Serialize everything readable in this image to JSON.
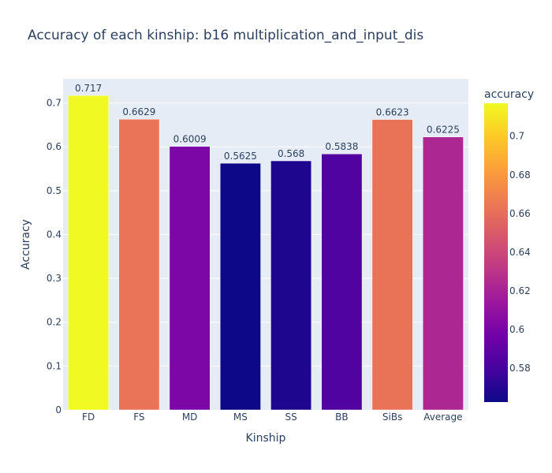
{
  "chart_data": {
    "type": "bar",
    "title": "Accuracy of each kinship: b16 multiplication_and_input_dis",
    "xlabel": "Kinship",
    "ylabel": "Accuracy",
    "categories": [
      "FD",
      "FS",
      "MD",
      "MS",
      "SS",
      "BB",
      "SiBs",
      "Average"
    ],
    "values": [
      0.717,
      0.6629,
      0.6009,
      0.5625,
      0.568,
      0.5838,
      0.6623,
      0.6225
    ],
    "value_labels": [
      "0.717",
      "0.6629",
      "0.6009",
      "0.5625",
      "0.568",
      "0.5838",
      "0.6623",
      "0.6225"
    ],
    "ylim": [
      0,
      0.755
    ],
    "yticks": [
      0,
      0.1,
      0.2,
      0.3,
      0.4,
      0.5,
      0.6,
      0.7
    ],
    "ytick_labels": [
      "0",
      "0.1",
      "0.2",
      "0.3",
      "0.4",
      "0.5",
      "0.6",
      "0.7"
    ],
    "grid": true,
    "colorbar": {
      "title": "accuracy",
      "range": [
        0.5625,
        0.717
      ],
      "ticks": [
        0.58,
        0.6,
        0.62,
        0.64,
        0.66,
        0.68,
        0.7
      ],
      "tick_labels": [
        "0.58",
        "0.6",
        "0.62",
        "0.64",
        "0.66",
        "0.68",
        "0.7"
      ],
      "colorscale": [
        "#0d0887",
        "#46039f",
        "#7201a8",
        "#9c179e",
        "#bd3786",
        "#d8576b",
        "#ed7953",
        "#fb9f3a",
        "#fdca26",
        "#f0f921"
      ]
    },
    "colors": {
      "plot_bg": "#e5ecf6",
      "grid": "#ffffff",
      "text": "#2a3f5f"
    }
  }
}
